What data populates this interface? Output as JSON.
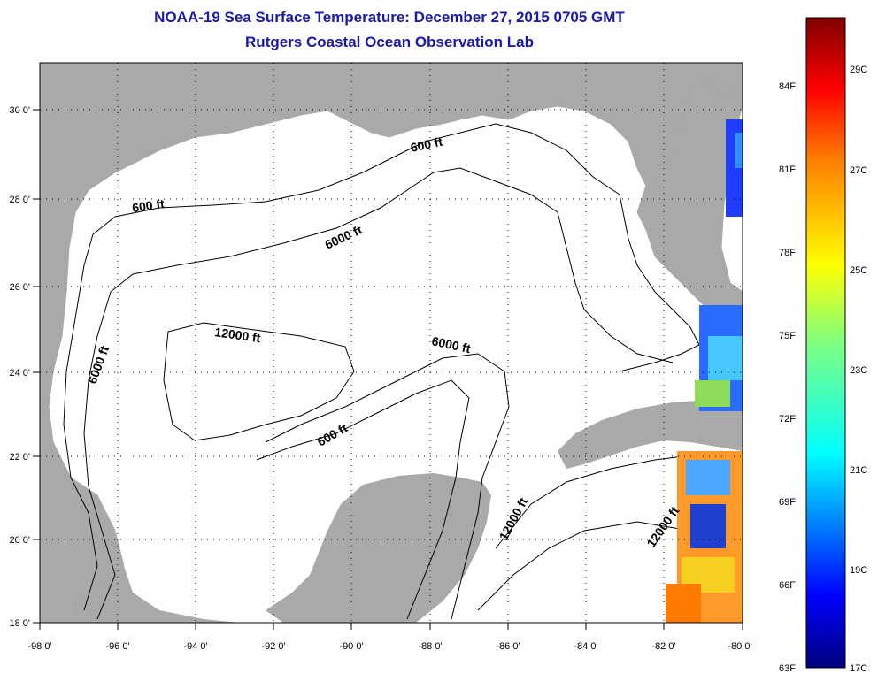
{
  "title": "NOAA-19 Sea Surface Temperature:  December 27, 2015 0705 GMT",
  "subtitle": "Rutgers Coastal Ocean Observation Lab",
  "map": {
    "lon_range": [
      -98,
      -80
    ],
    "lat_range": [
      18,
      31
    ],
    "lon_ticks": [
      "-98 0'",
      "-96 0'",
      "-94 0'",
      "-92 0'",
      "-90 0'",
      "-88 0'",
      "-86 0'",
      "-84 0'",
      "-82 0'",
      "-80 0'"
    ],
    "lat_ticks": [
      "18 0'",
      "20 0'",
      "22 0'",
      "24 0'",
      "26 0'",
      "28 0'",
      "30 0'"
    ],
    "grid": "dotted",
    "land_color": "#a9a9a9",
    "water_color": "#ffffff",
    "contour_labels": [
      "600 ft",
      "6000 ft",
      "6000 ft",
      "12000 ft",
      "6000 ft",
      "600 ft",
      "600 ft",
      "12000 ft",
      "12000 ft"
    ]
  },
  "colorbar": {
    "fahrenheit_labels": [
      "84F",
      "81F",
      "78F",
      "75F",
      "72F",
      "69F",
      "66F",
      "63F"
    ],
    "celsius_labels": [
      "29C",
      "27C",
      "25C",
      "23C",
      "21C",
      "19C",
      "17C"
    ],
    "colors": [
      "#00007f",
      "#0000ff",
      "#007fff",
      "#00ffff",
      "#7fff7f",
      "#ffff00",
      "#ff7f00",
      "#ff0000",
      "#7f0000"
    ]
  }
}
